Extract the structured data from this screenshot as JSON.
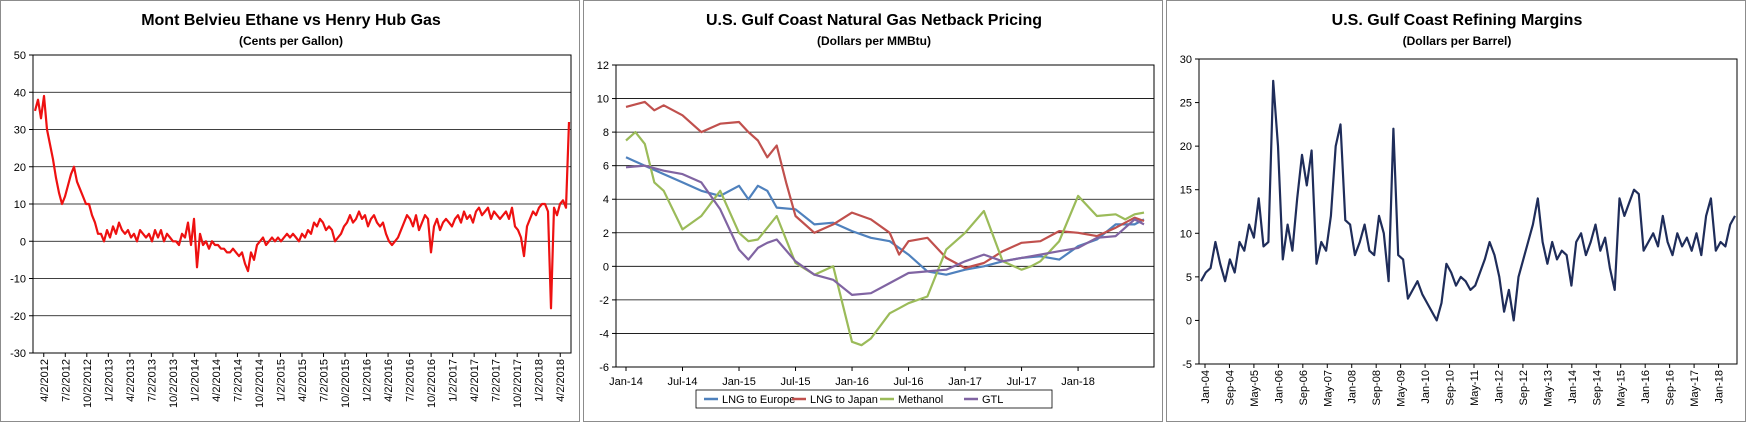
{
  "chart_data": [
    {
      "type": "line",
      "title": "Mont Belvieu Ethane vs Henry Hub Gas",
      "subtitle": "(Cents per Gallon)",
      "xlabel": "",
      "ylabel": "",
      "ylim": [
        -30,
        50
      ],
      "y_ticks": [
        -30,
        -20,
        -10,
        0,
        10,
        20,
        30,
        40,
        50
      ],
      "x_tick_labels": [
        "4/2/2012",
        "7/2/2012",
        "10/2/2012",
        "1/2/2013",
        "4/2/2013",
        "7/2/2013",
        "10/2/2013",
        "1/2/2014",
        "4/2/2014",
        "7/2/2014",
        "10/2/2014",
        "1/2/2015",
        "4/2/2015",
        "7/2/2015",
        "10/2/2015",
        "1/2/2016",
        "4/2/2016",
        "7/2/2016",
        "10/2/2016",
        "1/2/2017",
        "4/2/2017",
        "7/2/2017",
        "10/2/2017",
        "1/2/2018",
        "4/2/2018"
      ],
      "grid": true,
      "legend": "none",
      "colors": {
        "series": "#ee1111",
        "grid": "#000000"
      },
      "series": [
        {
          "values": [
            35,
            38,
            33,
            39,
            30,
            26,
            22,
            17,
            13,
            10,
            12,
            15,
            18,
            20,
            16,
            14,
            12,
            10,
            10,
            7,
            5,
            2,
            2,
            0,
            3,
            1,
            4,
            2,
            5,
            3,
            2,
            3,
            1,
            2,
            0,
            3,
            2,
            1,
            2,
            0,
            3,
            1,
            3,
            0,
            2,
            1,
            0,
            0,
            -1,
            2,
            1,
            5,
            -1,
            6,
            -7,
            2,
            -1,
            0,
            -2,
            0,
            -1,
            -1,
            -2,
            -2,
            -3,
            -3,
            -2,
            -3,
            -4,
            -3,
            -6,
            -8,
            -3,
            -5,
            -1,
            0,
            1,
            -1,
            0,
            1,
            0,
            1,
            0,
            1,
            2,
            1,
            2,
            1,
            0,
            2,
            1,
            3,
            2,
            5,
            4,
            6,
            5,
            3,
            4,
            3,
            0,
            1,
            2,
            4,
            5,
            7,
            5,
            6,
            8,
            6,
            7,
            4,
            6,
            7,
            5,
            4,
            5,
            2,
            0,
            -1,
            0,
            1,
            3,
            5,
            7,
            6,
            4,
            7,
            3,
            5,
            7,
            6,
            -3,
            4,
            6,
            3,
            5,
            6,
            5,
            4,
            6,
            7,
            5,
            8,
            6,
            7,
            5,
            8,
            9,
            7,
            8,
            9,
            6,
            8,
            7,
            6,
            7,
            8,
            6,
            9,
            4,
            3,
            1,
            -4,
            4,
            6,
            8,
            7,
            9,
            10,
            10,
            8,
            -18,
            9,
            7,
            10,
            11,
            9,
            32
          ]
        }
      ]
    },
    {
      "type": "line",
      "title": "U.S. Gulf Coast Natural Gas Netback Pricing",
      "subtitle": "(Dollars per MMBtu)",
      "xlabel": "",
      "ylabel": "",
      "ylim": [
        -6,
        12
      ],
      "y_ticks": [
        -6,
        -4,
        -2,
        0,
        2,
        4,
        6,
        8,
        10,
        12
      ],
      "x_tick_labels": [
        "Jan-14",
        "Jul-14",
        "Jan-15",
        "Jul-15",
        "Jan-16",
        "Jul-16",
        "Jan-17",
        "Jul-17",
        "Jan-18"
      ],
      "x_range_months": [
        0,
        55
      ],
      "grid": true,
      "legend": "bottom",
      "series": [
        {
          "name": "LNG to Europe",
          "color": "#4f81bd",
          "x": [
            0,
            2,
            4,
            6,
            8,
            10,
            12,
            13,
            14,
            15,
            16,
            18,
            20,
            22,
            24,
            26,
            28,
            30,
            32,
            34,
            36,
            38,
            40,
            42,
            44,
            46,
            48,
            50,
            52,
            54,
            55
          ],
          "values": [
            6.5,
            6.0,
            5.5,
            5.0,
            4.5,
            4.2,
            4.8,
            4.0,
            4.8,
            4.5,
            3.5,
            3.4,
            2.5,
            2.6,
            2.1,
            1.7,
            1.5,
            0.7,
            -0.3,
            -0.5,
            -0.2,
            0.0,
            0.3,
            0.5,
            0.6,
            0.4,
            1.2,
            1.6,
            2.5,
            2.5,
            2.8
          ]
        },
        {
          "name": "LNG to Japan",
          "color": "#c0504d",
          "x": [
            0,
            2,
            3,
            4,
            6,
            8,
            10,
            12,
            13,
            14,
            15,
            16,
            17,
            18,
            20,
            22,
            24,
            26,
            28,
            29,
            30,
            32,
            34,
            36,
            38,
            40,
            42,
            44,
            46,
            48,
            50,
            52,
            54,
            55
          ],
          "values": [
            9.5,
            9.8,
            9.3,
            9.6,
            9.0,
            8.0,
            8.5,
            8.6,
            8.0,
            7.5,
            6.5,
            7.2,
            5.0,
            3.0,
            2.0,
            2.5,
            3.2,
            2.8,
            2.0,
            0.7,
            1.5,
            1.7,
            0.5,
            -0.1,
            0.2,
            0.9,
            1.4,
            1.5,
            2.1,
            2.0,
            1.8,
            2.3,
            2.9,
            2.7
          ]
        },
        {
          "name": "Methanol",
          "color": "#9bbb59",
          "x": [
            0,
            1,
            2,
            3,
            4,
            6,
            8,
            10,
            12,
            13,
            14,
            16,
            18,
            20,
            22,
            24,
            25,
            26,
            28,
            29,
            30,
            32,
            34,
            36,
            38,
            40,
            42,
            43,
            44,
            46,
            48,
            50,
            52,
            53,
            54,
            55
          ],
          "values": [
            7.5,
            8.0,
            7.3,
            5.0,
            4.5,
            2.2,
            3.0,
            4.5,
            2.0,
            1.5,
            1.6,
            3.0,
            0.2,
            -0.5,
            0.0,
            -4.5,
            -4.7,
            -4.3,
            -2.8,
            -2.5,
            -2.2,
            -1.8,
            1.0,
            2.0,
            3.3,
            0.3,
            -0.2,
            0.0,
            0.3,
            1.5,
            4.2,
            3.0,
            3.1,
            2.8,
            3.1,
            3.2
          ]
        },
        {
          "name": "GTL",
          "color": "#8064a2",
          "x": [
            0,
            2,
            4,
            6,
            8,
            10,
            12,
            13,
            14,
            15,
            16,
            18,
            20,
            22,
            24,
            26,
            28,
            30,
            32,
            34,
            36,
            38,
            40,
            42,
            44,
            46,
            48,
            50,
            52,
            54,
            55
          ],
          "values": [
            5.9,
            6.0,
            5.7,
            5.5,
            5.0,
            3.4,
            1.0,
            0.4,
            1.1,
            1.4,
            1.6,
            0.3,
            -0.5,
            -0.8,
            -1.7,
            -1.6,
            -1.0,
            -0.4,
            -0.3,
            -0.2,
            0.3,
            0.7,
            0.3,
            0.5,
            0.7,
            0.9,
            1.1,
            1.7,
            1.8,
            2.8,
            2.5
          ]
        }
      ]
    },
    {
      "type": "line",
      "title": "U.S. Gulf Coast Refining Margins",
      "subtitle": "(Dollars per Barrel)",
      "xlabel": "",
      "ylabel": "",
      "ylim": [
        -5,
        30
      ],
      "y_ticks": [
        -5,
        0,
        5,
        10,
        15,
        20,
        25,
        30
      ],
      "x_tick_labels": [
        "Jan-04",
        "Sep-04",
        "May-05",
        "Jan-06",
        "Sep-06",
        "May-07",
        "Jan-08",
        "Sep-08",
        "May-09",
        "Jan-10",
        "Sep-10",
        "May-11",
        "Jan-12",
        "Sep-12",
        "May-13",
        "Jan-14",
        "Sep-14",
        "May-15",
        "Jan-16",
        "Sep-16",
        "May-17",
        "Jan-18"
      ],
      "grid": false,
      "legend": "none",
      "colors": {
        "series": "#1f2d5a"
      },
      "series": [
        {
          "values": [
            4.5,
            5.5,
            6.0,
            9.0,
            6.5,
            4.5,
            7.0,
            5.5,
            9.0,
            8.0,
            11.0,
            9.5,
            14.0,
            8.5,
            9.0,
            27.5,
            20.0,
            7.0,
            11.0,
            8.0,
            14.0,
            19.0,
            15.5,
            19.5,
            6.5,
            9.0,
            8.0,
            12.0,
            20.0,
            22.5,
            11.5,
            11.0,
            7.5,
            9.0,
            11.0,
            8.0,
            7.5,
            12.0,
            10.0,
            4.5,
            22.0,
            7.5,
            7.0,
            2.5,
            3.5,
            4.5,
            3.0,
            2.0,
            1.0,
            0.0,
            2.0,
            6.5,
            5.5,
            4.0,
            5.0,
            4.5,
            3.5,
            4.0,
            5.5,
            7.0,
            9.0,
            7.5,
            5.0,
            1.0,
            3.5,
            0.0,
            5.0,
            7.0,
            9.0,
            11.0,
            14.0,
            9.0,
            6.5,
            9.0,
            7.0,
            8.0,
            7.5,
            4.0,
            9.0,
            10.0,
            7.5,
            9.0,
            11.0,
            8.0,
            9.5,
            6.0,
            3.5,
            14.0,
            12.0,
            13.5,
            15.0,
            14.5,
            8.0,
            9.0,
            10.0,
            8.5,
            12.0,
            9.0,
            7.5,
            10.0,
            8.5,
            9.5,
            8.0,
            10.0,
            7.5,
            12.0,
            14.0,
            8.0,
            9.0,
            8.5,
            11.0,
            12.0
          ]
        }
      ]
    }
  ]
}
